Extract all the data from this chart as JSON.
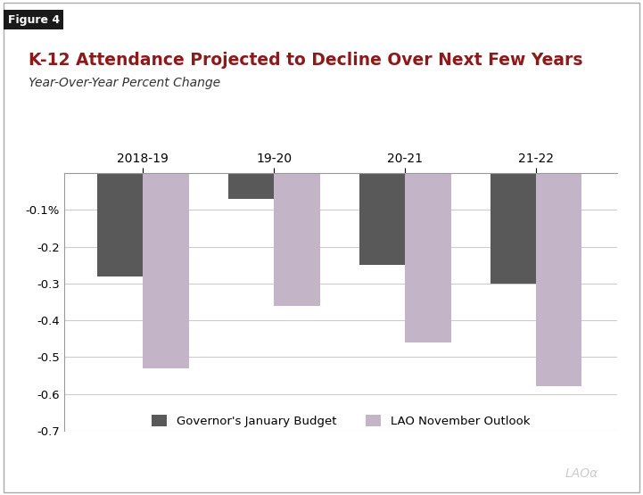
{
  "title": "K-12 Attendance Projected to Decline Over Next Few Years",
  "subtitle": "Year-Over-Year Percent Change",
  "figure_label": "Figure 4",
  "categories": [
    "2018-19",
    "19-20",
    "20-21",
    "21-22"
  ],
  "governor_values": [
    -0.28,
    -0.07,
    -0.25,
    -0.3
  ],
  "lao_values": [
    -0.53,
    -0.36,
    -0.46,
    -0.58
  ],
  "governor_color": "#595959",
  "lao_color": "#C4B4C8",
  "ylim": [
    -0.7,
    0.0
  ],
  "yticks": [
    0.0,
    -0.1,
    -0.2,
    -0.3,
    -0.4,
    -0.5,
    -0.6,
    -0.7
  ],
  "ytick_labels": [
    "",
    "-0.1%",
    "-0.2",
    "-0.3",
    "-0.4",
    "-0.5",
    "-0.6",
    "-0.7"
  ],
  "legend_labels": [
    "Governor's January Budget",
    "LAO November Outlook"
  ],
  "background_color": "#FFFFFF",
  "title_color": "#8B1A1A",
  "bar_width": 0.35,
  "grid_color": "#CCCCCC",
  "fig_label_bg": "#1A1A1A",
  "fig_label_color": "#FFFFFF",
  "watermark": "LAOα"
}
